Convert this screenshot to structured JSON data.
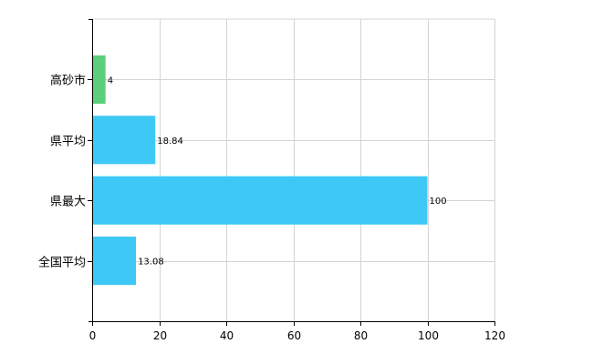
{
  "chart_data": {
    "type": "bar",
    "orientation": "horizontal",
    "categories": [
      "高砂市",
      "県平均",
      "県最大",
      "全国平均"
    ],
    "values": [
      4,
      18.84,
      100,
      13.08
    ],
    "value_labels": [
      "4",
      "18.84",
      "100",
      "13.08"
    ],
    "bar_colors": [
      "#5ccf7c",
      "#3ec8f5",
      "#3ec8f5",
      "#3ec8f5"
    ],
    "xlim": [
      0,
      120
    ],
    "xticks": [
      0,
      20,
      40,
      60,
      80,
      100,
      120
    ],
    "xtick_labels": [
      "0",
      "20",
      "40",
      "60",
      "80",
      "100",
      "120"
    ],
    "grid": true,
    "legend": "none",
    "title": "",
    "xlabel": "",
    "ylabel": ""
  }
}
